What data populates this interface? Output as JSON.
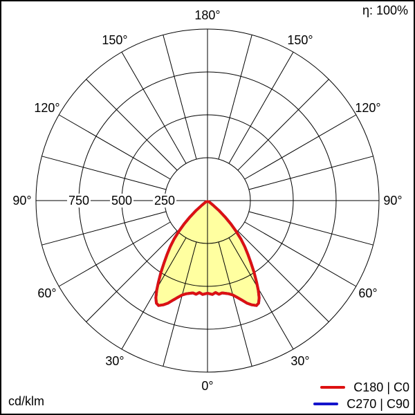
{
  "header": {
    "efficiency": "η: 100%"
  },
  "footer": {
    "unit": "cd/klm"
  },
  "legend": {
    "entries": [
      {
        "label": "C180 | C0",
        "color": "#dd1111"
      },
      {
        "label": "C270 | C90",
        "color": "#1414cc"
      }
    ]
  },
  "colors": {
    "curve_red": "#dd1111",
    "curve_blue": "#1414cc",
    "curve_fill": "#ffffa0",
    "grid": "#000000",
    "background": "#ffffff"
  },
  "chart_data": {
    "type": "polar-photometric",
    "unit": "cd/klm",
    "efficiency_label": "η: 100%",
    "efficiency_percent": 100,
    "radial_axis": {
      "tick_labels": [
        "250",
        "500",
        "750"
      ],
      "tick_values": [
        250,
        500,
        750
      ],
      "ring_values": [
        250,
        500,
        750,
        1000
      ],
      "max": 1000
    },
    "angular_grid_step_deg": 15,
    "angle_labels": [
      {
        "gamma": 0,
        "side": 0,
        "label": "0°"
      },
      {
        "gamma": 30,
        "side": -1,
        "label": "30°"
      },
      {
        "gamma": 30,
        "side": 1,
        "label": "30°"
      },
      {
        "gamma": 60,
        "side": -1,
        "label": "60°"
      },
      {
        "gamma": 60,
        "side": 1,
        "label": "60°"
      },
      {
        "gamma": 90,
        "side": -1,
        "label": "90°"
      },
      {
        "gamma": 90,
        "side": 1,
        "label": "90°"
      },
      {
        "gamma": 120,
        "side": -1,
        "label": "120°"
      },
      {
        "gamma": 120,
        "side": 1,
        "label": "120°"
      },
      {
        "gamma": 150,
        "side": -1,
        "label": "150°"
      },
      {
        "gamma": 150,
        "side": 1,
        "label": "150°"
      },
      {
        "gamma": 180,
        "side": 0,
        "label": "180°"
      }
    ],
    "series": [
      {
        "name": "C180 | C0",
        "color": "#dd1111",
        "fill": "#ffffa0",
        "symmetric_mirror": true,
        "points_gamma_deg_vs_cd_per_klm": [
          [
            0,
            540
          ],
          [
            3,
            548
          ],
          [
            5,
            538
          ],
          [
            7,
            550
          ],
          [
            9,
            545
          ],
          [
            11,
            551
          ],
          [
            13,
            558
          ],
          [
            15,
            570
          ],
          [
            17,
            590
          ],
          [
            19,
            613
          ],
          [
            21,
            640
          ],
          [
            23,
            660
          ],
          [
            25,
            675
          ],
          [
            26.5,
            668
          ],
          [
            28,
            642
          ],
          [
            29.5,
            602
          ],
          [
            31,
            556
          ],
          [
            33,
            498
          ],
          [
            35,
            440
          ],
          [
            37,
            390
          ],
          [
            39,
            345
          ],
          [
            41,
            296
          ],
          [
            43,
            245
          ],
          [
            45,
            192
          ],
          [
            47,
            140
          ],
          [
            49,
            88
          ],
          [
            50.5,
            40
          ],
          [
            51.5,
            10
          ]
        ]
      },
      {
        "name": "C270 | C90",
        "color": "#1414cc",
        "fill": null,
        "symmetric_mirror": true,
        "points_gamma_deg_vs_cd_per_klm": [
          [
            0,
            540
          ],
          [
            3,
            548
          ],
          [
            5,
            538
          ],
          [
            7,
            550
          ],
          [
            9,
            545
          ],
          [
            11,
            551
          ],
          [
            13,
            558
          ],
          [
            15,
            570
          ],
          [
            17,
            590
          ],
          [
            19,
            613
          ],
          [
            21,
            640
          ],
          [
            23,
            660
          ],
          [
            25,
            675
          ],
          [
            26.5,
            668
          ],
          [
            28,
            642
          ],
          [
            29.5,
            602
          ],
          [
            31,
            556
          ],
          [
            33,
            498
          ],
          [
            35,
            440
          ],
          [
            37,
            390
          ],
          [
            39,
            345
          ],
          [
            41,
            296
          ],
          [
            43,
            245
          ],
          [
            45,
            192
          ],
          [
            47,
            140
          ],
          [
            49,
            88
          ],
          [
            50.5,
            40
          ],
          [
            51.5,
            10
          ]
        ]
      }
    ]
  }
}
